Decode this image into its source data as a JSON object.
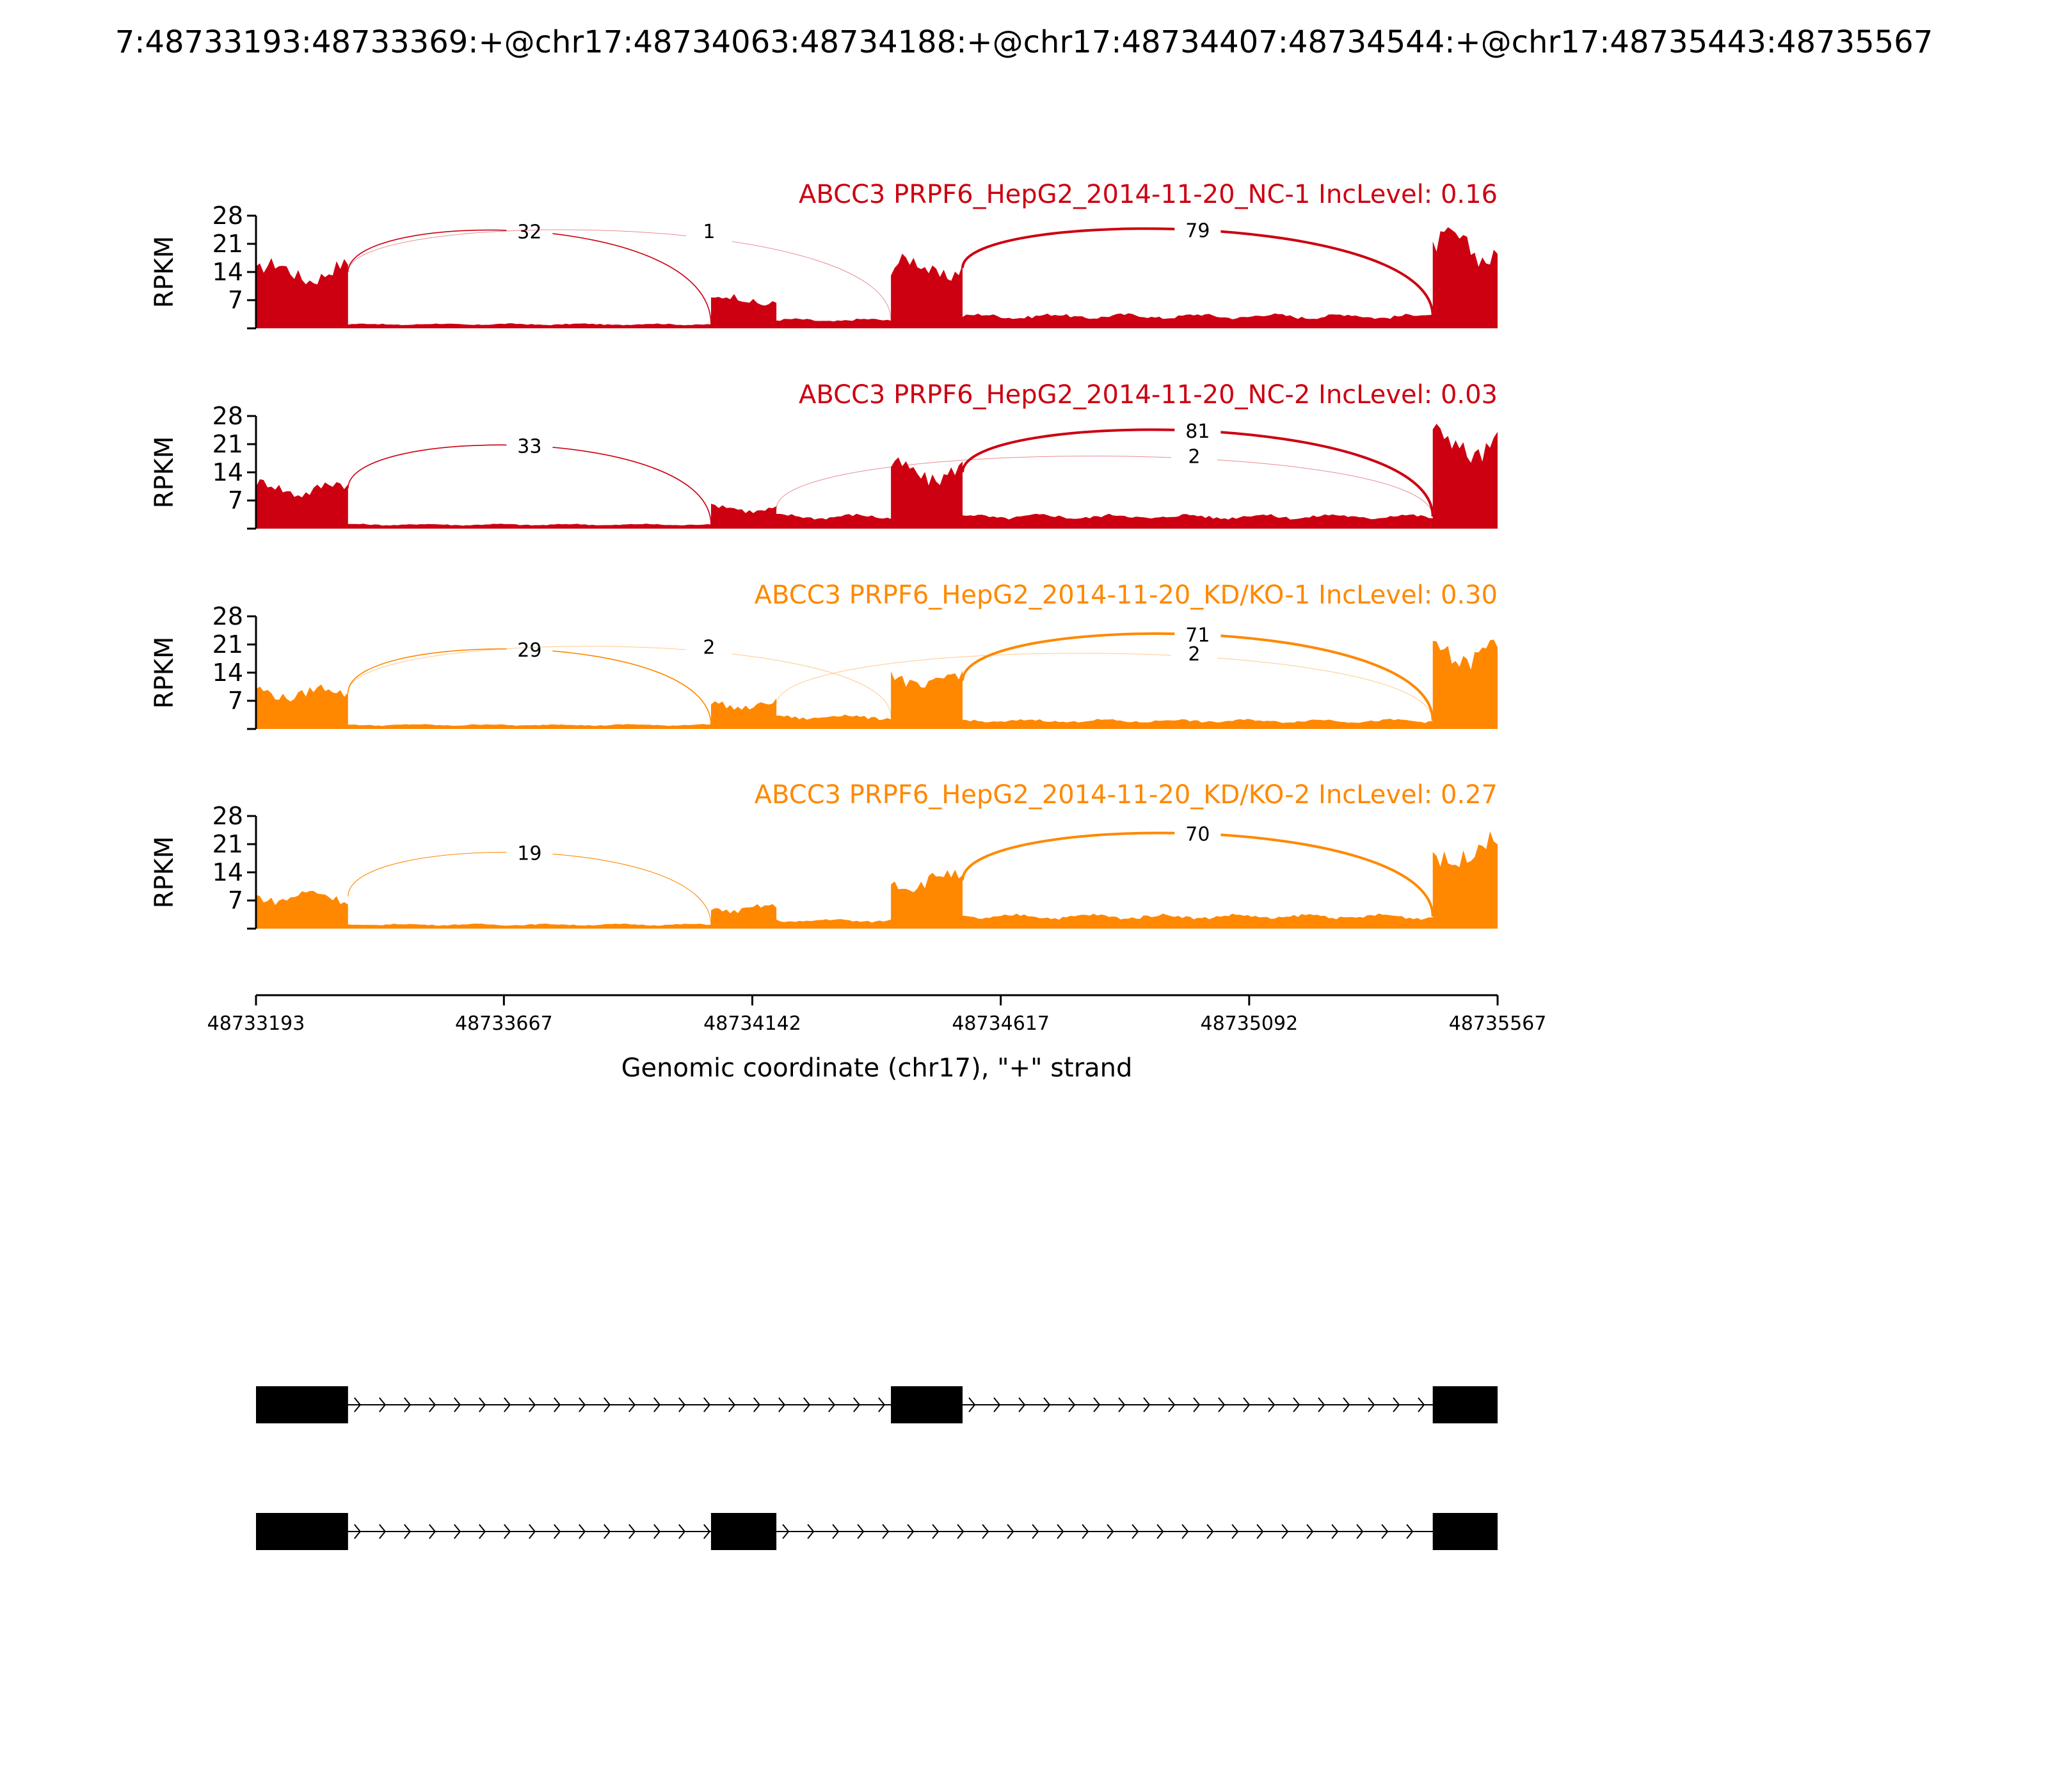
{
  "page_title": "7:48733193:48733369:+@chr17:48734063:48734188:+@chr17:48734407:48734544:+@chr17:48735443:48735567",
  "chart_data": {
    "type": "area",
    "title": "7:48733193:48733369:+@chr17:48734063:48734188:+@chr17:48734407:48734544:+@chr17:48735443:48735567",
    "xlabel": "Genomic coordinate (chr17), \"+\" strand",
    "ylabel": "RPKM",
    "xlim": [
      48733193,
      48735567
    ],
    "x_ticks": [
      "48733193",
      "48733667",
      "48734142",
      "48734617",
      "48735092",
      "48735567"
    ],
    "ylim": [
      0,
      28
    ],
    "y_ticks": [
      "7",
      "14",
      "21",
      "28"
    ],
    "panels": [
      {
        "label": "ABCC3 PRPF6_HepG2_2014-11-20_NC-1 IncLevel: 0.16",
        "color": "#cc0011",
        "junctions": [
          {
            "start": 48733369,
            "end": 48734063,
            "count": 32,
            "label": "32"
          },
          {
            "start": 48733369,
            "end": 48734407,
            "count": 1,
            "label": "1"
          },
          {
            "start": 48734544,
            "end": 48735443,
            "count": 79,
            "label": "79"
          }
        ],
        "coverage": [
          {
            "start": 48733193,
            "end": 48733369,
            "level": 14
          },
          {
            "start": 48733369,
            "end": 48734063,
            "level": 1
          },
          {
            "start": 48734063,
            "end": 48734188,
            "level": 7
          },
          {
            "start": 48734188,
            "end": 48734407,
            "level": 2
          },
          {
            "start": 48734407,
            "end": 48734544,
            "level": 15
          },
          {
            "start": 48734544,
            "end": 48735443,
            "level": 3
          },
          {
            "start": 48735443,
            "end": 48735567,
            "level": 20
          }
        ]
      },
      {
        "label": "ABCC3 PRPF6_HepG2_2014-11-20_NC-2 IncLevel: 0.03",
        "color": "#cc0011",
        "junctions": [
          {
            "start": 48733369,
            "end": 48734063,
            "count": 33,
            "label": "33"
          },
          {
            "start": 48734188,
            "end": 48735443,
            "count": 2,
            "label": "2"
          },
          {
            "start": 48734544,
            "end": 48735443,
            "count": 81,
            "label": "81"
          }
        ],
        "coverage": [
          {
            "start": 48733193,
            "end": 48733369,
            "level": 10
          },
          {
            "start": 48733369,
            "end": 48734063,
            "level": 1
          },
          {
            "start": 48734063,
            "end": 48734188,
            "level": 5
          },
          {
            "start": 48734188,
            "end": 48734407,
            "level": 3
          },
          {
            "start": 48734407,
            "end": 48734544,
            "level": 14
          },
          {
            "start": 48734544,
            "end": 48735443,
            "level": 3
          },
          {
            "start": 48735443,
            "end": 48735567,
            "level": 21
          }
        ]
      },
      {
        "label": "ABCC3 PRPF6_HepG2_2014-11-20_KD/KO-1 IncLevel: 0.30",
        "color": "#ff8800",
        "junctions": [
          {
            "start": 48733369,
            "end": 48734063,
            "count": 29,
            "label": "29"
          },
          {
            "start": 48733369,
            "end": 48734407,
            "count": 2,
            "label": "2"
          },
          {
            "start": 48734188,
            "end": 48735443,
            "count": 2,
            "label": "2"
          },
          {
            "start": 48734544,
            "end": 48735443,
            "count": 71,
            "label": "71"
          }
        ],
        "coverage": [
          {
            "start": 48733193,
            "end": 48733369,
            "level": 9
          },
          {
            "start": 48733369,
            "end": 48734063,
            "level": 1
          },
          {
            "start": 48734063,
            "end": 48734188,
            "level": 6
          },
          {
            "start": 48734188,
            "end": 48734407,
            "level": 3
          },
          {
            "start": 48734407,
            "end": 48734544,
            "level": 12
          },
          {
            "start": 48734544,
            "end": 48735443,
            "level": 2
          },
          {
            "start": 48735443,
            "end": 48735567,
            "level": 19
          }
        ]
      },
      {
        "label": "ABCC3 PRPF6_HepG2_2014-11-20_KD/KO-2 IncLevel: 0.27",
        "color": "#ff8800",
        "junctions": [
          {
            "start": 48733369,
            "end": 48734063,
            "count": 19,
            "label": "19"
          },
          {
            "start": 48734544,
            "end": 48735443,
            "count": 70,
            "label": "70"
          }
        ],
        "coverage": [
          {
            "start": 48733193,
            "end": 48733369,
            "level": 8
          },
          {
            "start": 48733369,
            "end": 48734063,
            "level": 1
          },
          {
            "start": 48734063,
            "end": 48734188,
            "level": 5
          },
          {
            "start": 48734188,
            "end": 48734407,
            "level": 2
          },
          {
            "start": 48734407,
            "end": 48734544,
            "level": 12
          },
          {
            "start": 48734544,
            "end": 48735443,
            "level": 3
          },
          {
            "start": 48735443,
            "end": 48735567,
            "level": 19
          }
        ]
      }
    ],
    "isoforms": [
      {
        "exons": [
          [
            48733193,
            48733369
          ],
          [
            48734407,
            48734544
          ],
          [
            48735443,
            48735567
          ]
        ]
      },
      {
        "exons": [
          [
            48733193,
            48733369
          ],
          [
            48734063,
            48734188
          ],
          [
            48735443,
            48735567
          ]
        ]
      }
    ]
  }
}
